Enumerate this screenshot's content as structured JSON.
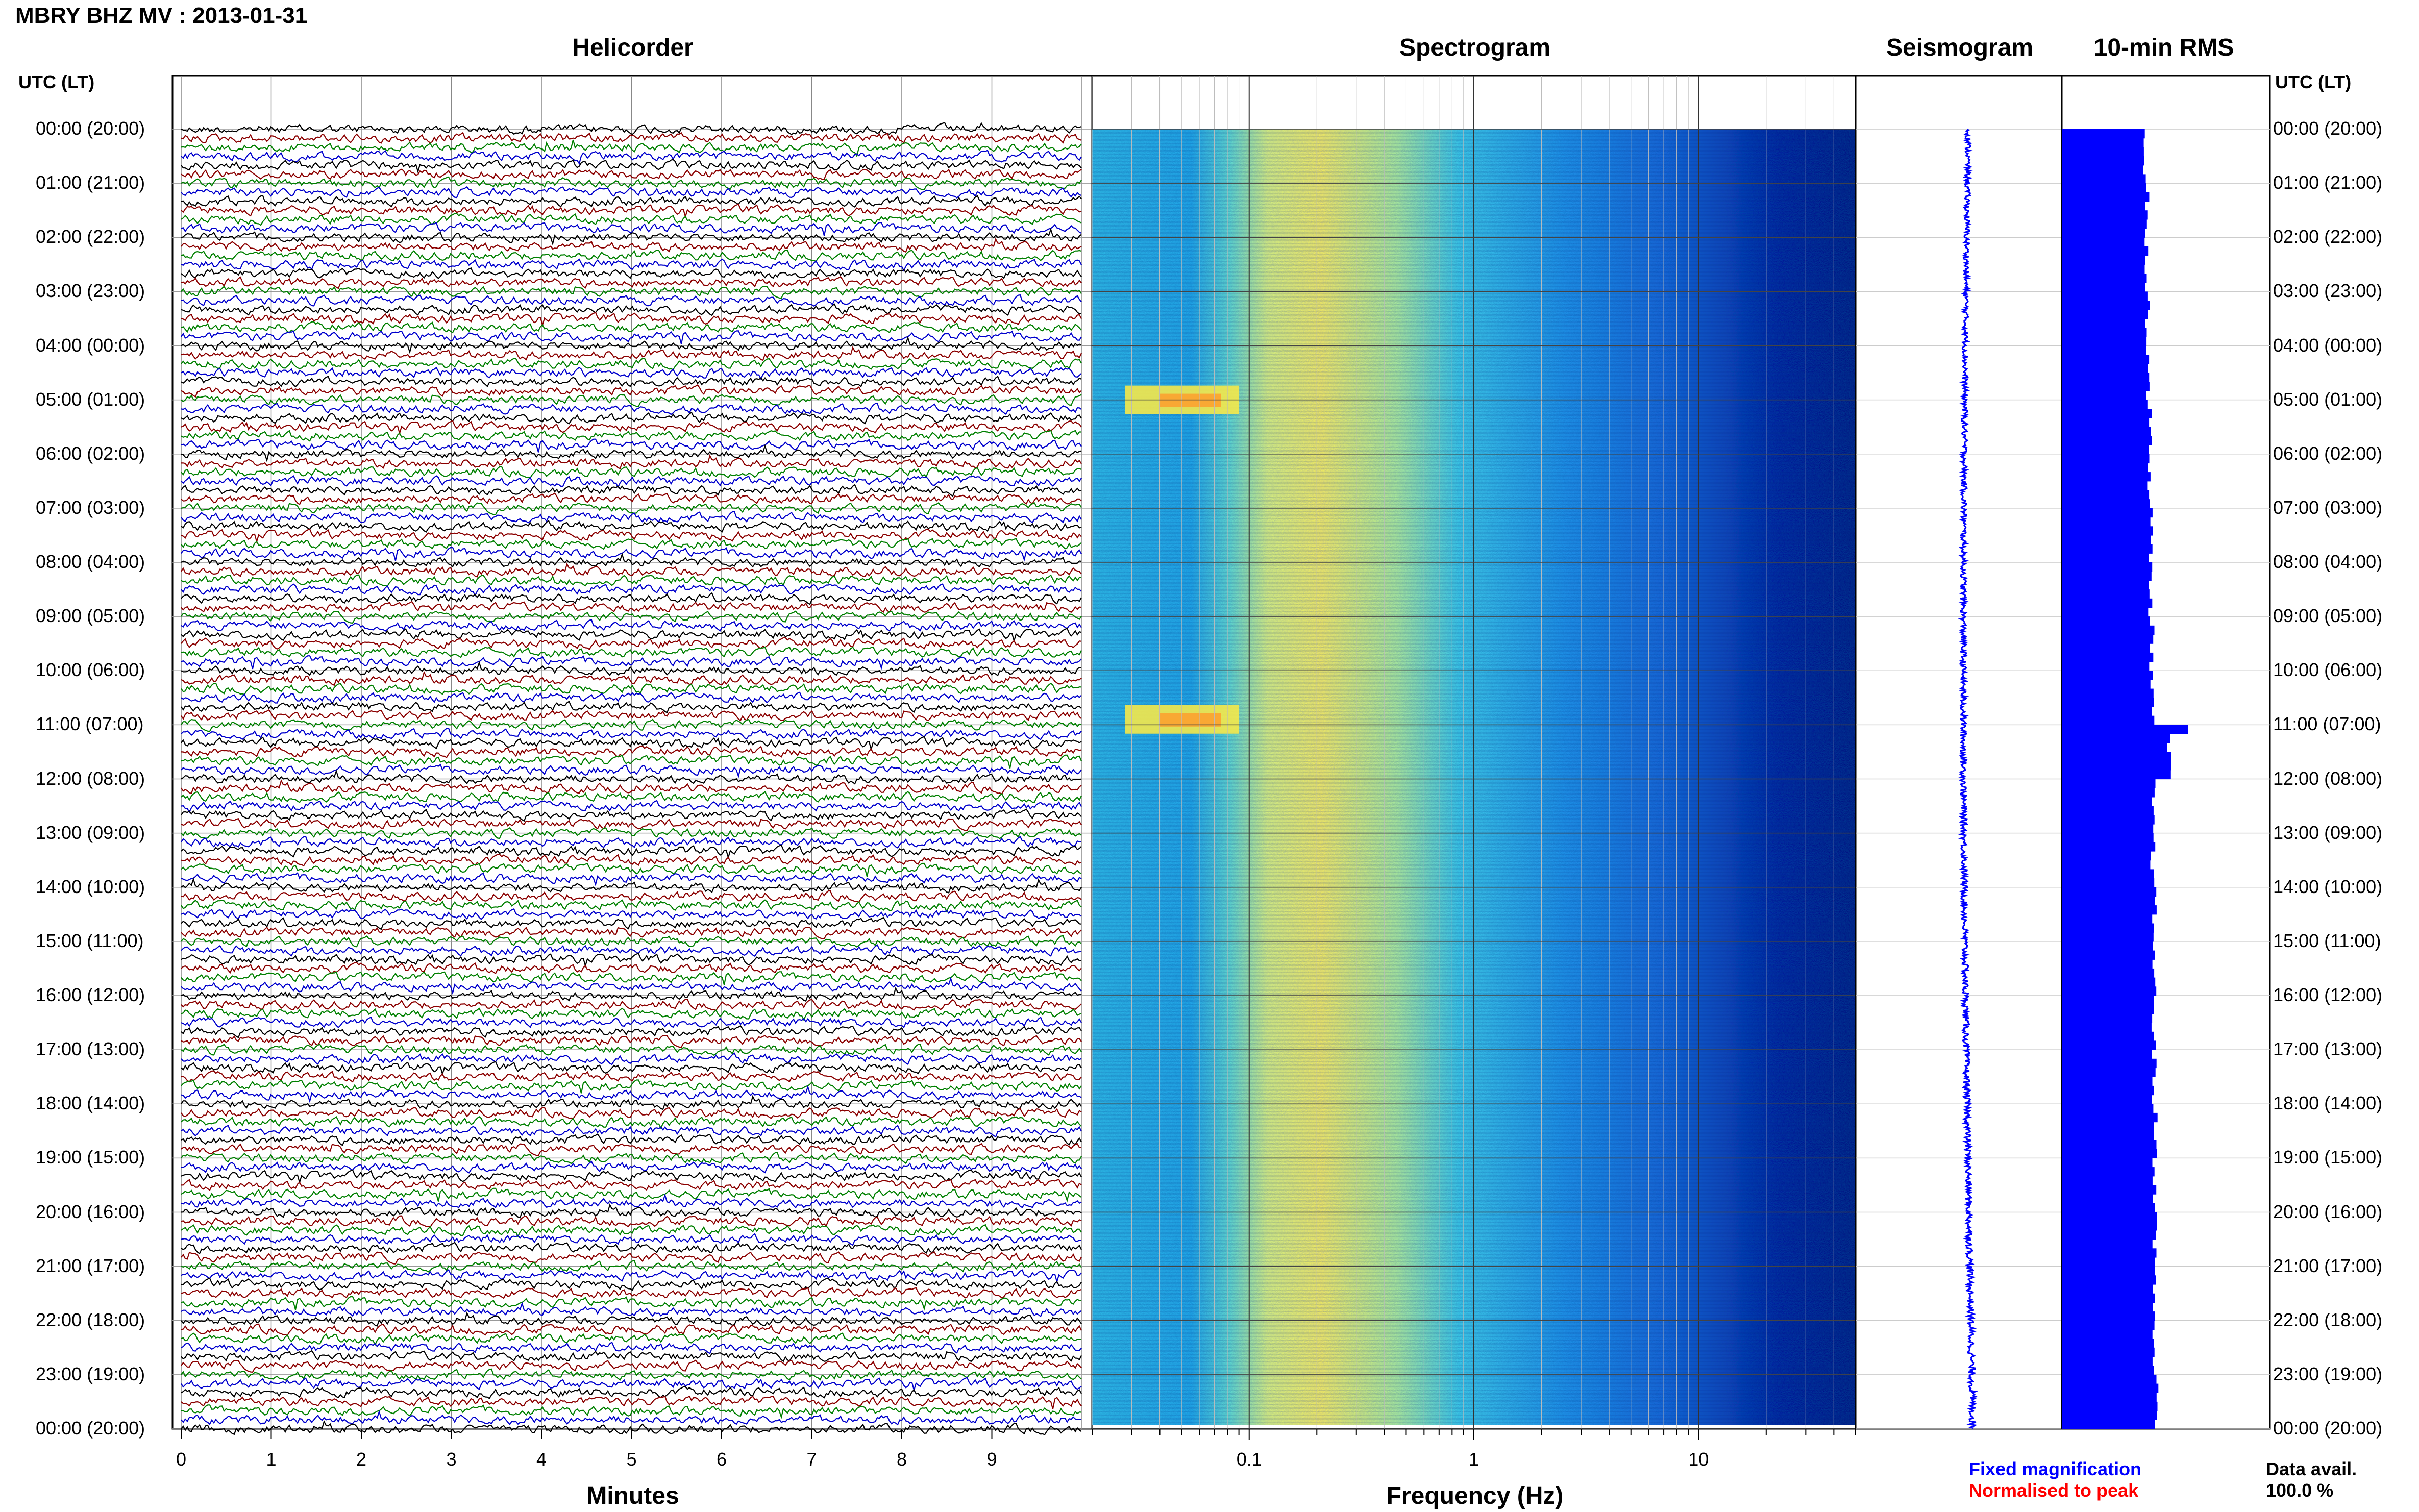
{
  "title": "MBRY BHZ MV : 2013-01-31",
  "panels": {
    "helicorder": "Helicorder",
    "spectrogram": "Spectrogram",
    "seismogram": "Seismogram",
    "rms": "10-min RMS"
  },
  "time_axis_label": "UTC (LT)",
  "time_labels": [
    "00:00 (20:00)",
    "01:00 (21:00)",
    "02:00 (22:00)",
    "03:00 (23:00)",
    "04:00 (00:00)",
    "05:00 (01:00)",
    "06:00 (02:00)",
    "07:00 (03:00)",
    "08:00 (04:00)",
    "09:00 (05:00)",
    "10:00 (06:00)",
    "11:00 (07:00)",
    "12:00 (08:00)",
    "13:00 (09:00)",
    "14:00 (10:00)",
    "15:00 (11:00)",
    "16:00 (12:00)",
    "17:00 (13:00)",
    "18:00 (14:00)",
    "19:00 (15:00)",
    "20:00 (16:00)",
    "21:00 (17:00)",
    "22:00 (18:00)",
    "23:00 (19:00)",
    "00:00 (20:00)"
  ],
  "legend": {
    "fixed": "Fixed magnification",
    "normalised": "Normalised to peak",
    "fixed_color": "#0000ff",
    "normalised_color": "#ff0000"
  },
  "data_avail": {
    "label": "Data avail.",
    "value": "100.0 %"
  },
  "trace_colors": [
    "#000000",
    "#8b0000",
    "#008000",
    "#0000cd"
  ],
  "chart_data": [
    {
      "type": "line",
      "panel": "helicorder",
      "xlabel": "Minutes",
      "x_ticks": [
        "0",
        "1",
        "2",
        "3",
        "4",
        "5",
        "6",
        "7",
        "8",
        "9"
      ],
      "xlim": [
        0,
        10
      ],
      "lines_per_hour": 6,
      "note": "continuous background noise, all traces similar amplitude"
    },
    {
      "type": "heatmap",
      "panel": "spectrogram",
      "xlabel": "Frequency (Hz)",
      "x_scale": "log",
      "x_ticks": [
        "0.1",
        "1",
        "10"
      ],
      "xlim": [
        0.02,
        50
      ],
      "colormap": [
        "#00008b",
        "#0040ff",
        "#00bfff",
        "#40e0d0",
        "#ffff40",
        "#ff8000",
        "#ff0000"
      ],
      "peak_band_hz": [
        0.2,
        0.6
      ],
      "events_utc_hour": [
        5.0,
        10.9
      ],
      "events_freq_hz": [
        0.03,
        0.08
      ]
    },
    {
      "type": "line",
      "panel": "seismogram",
      "color": "#0000ff",
      "note": "24-hour compressed trace"
    },
    {
      "type": "bar",
      "panel": "rms",
      "color": "#0000ff",
      "interval_min": 10,
      "hours": [
        0,
        1,
        2,
        3,
        4,
        5,
        6,
        7,
        8,
        9,
        10,
        11,
        12,
        13,
        14,
        15,
        16,
        17,
        18,
        19,
        20,
        21,
        22,
        23
      ],
      "rms_relative": [
        0.78,
        0.8,
        0.79,
        0.8,
        0.81,
        0.82,
        0.82,
        0.83,
        0.83,
        0.84,
        0.84,
        1.0,
        0.85,
        0.85,
        0.86,
        0.86,
        0.86,
        0.86,
        0.87,
        0.87,
        0.87,
        0.86,
        0.86,
        0.88
      ]
    }
  ]
}
